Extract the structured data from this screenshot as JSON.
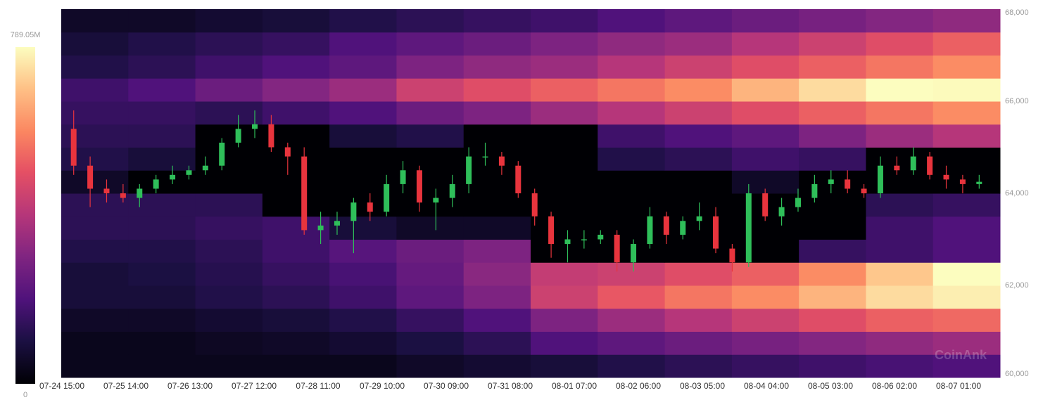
{
  "chart_data": {
    "type": "heatmap-candlestick",
    "watermark": "CoinAnk",
    "colormap": "magma",
    "clim": [
      0,
      789.05
    ],
    "cticks": [
      0,
      {
        "value": 789.05,
        "label": "789.05M"
      }
    ],
    "ylim": [
      60000,
      68000
    ],
    "yticks": [
      {
        "value": 60000,
        "label": "60,000"
      },
      {
        "value": 62000,
        "label": "62,000"
      },
      {
        "value": 64000,
        "label": "64,000"
      },
      {
        "value": 66000,
        "label": "66,000"
      },
      {
        "value": 68000,
        "label": "68,000"
      }
    ],
    "categories": [
      "07-24 15:00",
      "07-25 14:00",
      "07-26 13:00",
      "07-27 12:00",
      "07-28 11:00",
      "07-29 10:00",
      "07-30 09:00",
      "07-31 08:00",
      "08-01 07:00",
      "08-02 06:00",
      "08-03 05:00",
      "08-04 04:00",
      "08-05 03:00",
      "08-06 02:00",
      "08-07 01:00"
    ],
    "up_color": "#2fbf5a",
    "down_color": "#e8343d",
    "heatmap": {
      "price_bins": [
        60000,
        60500,
        61000,
        61500,
        62000,
        62500,
        63000,
        63500,
        64000,
        64500,
        65000,
        65500,
        66000,
        66500,
        67000,
        67500,
        68000
      ],
      "values": [
        [
          5,
          5,
          5,
          5,
          5,
          10,
          15,
          20,
          30,
          40,
          50,
          60,
          70,
          80
        ],
        [
          5,
          5,
          8,
          10,
          15,
          25,
          40,
          80,
          100,
          120,
          140,
          160,
          180,
          200
        ],
        [
          10,
          10,
          15,
          20,
          30,
          50,
          80,
          150,
          200,
          250,
          300,
          350,
          400,
          420
        ],
        [
          20,
          20,
          30,
          40,
          60,
          100,
          150,
          300,
          380,
          450,
          500,
          600,
          700,
          750
        ],
        [
          20,
          25,
          35,
          50,
          70,
          110,
          170,
          280,
          300,
          350,
          400,
          500,
          650,
          789
        ],
        [
          30,
          30,
          40,
          60,
          90,
          120,
          150,
          0,
          0,
          0,
          0,
          50,
          60,
          80
        ],
        [
          40,
          40,
          50,
          60,
          20,
          10,
          10,
          0,
          0,
          0,
          0,
          0,
          60,
          80
        ],
        [
          40,
          40,
          40,
          0,
          0,
          0,
          0,
          0,
          0,
          0,
          0,
          0,
          40,
          50
        ],
        [
          10,
          0,
          0,
          0,
          0,
          0,
          0,
          0,
          0,
          0,
          10,
          0,
          0,
          0
        ],
        [
          30,
          20,
          0,
          0,
          0,
          0,
          0,
          0,
          30,
          40,
          60,
          50,
          0,
          0
        ],
        [
          40,
          40,
          0,
          0,
          20,
          30,
          0,
          0,
          60,
          80,
          100,
          150,
          200,
          250
        ],
        [
          50,
          50,
          40,
          60,
          80,
          120,
          150,
          200,
          250,
          300,
          350,
          400,
          450,
          500
        ],
        [
          60,
          80,
          120,
          160,
          200,
          300,
          350,
          400,
          450,
          500,
          600,
          700,
          789,
          780
        ],
        [
          30,
          40,
          60,
          80,
          100,
          150,
          180,
          200,
          250,
          300,
          350,
          400,
          450,
          500
        ],
        [
          20,
          30,
          40,
          50,
          80,
          100,
          120,
          150,
          180,
          200,
          250,
          300,
          350,
          400
        ],
        [
          10,
          10,
          15,
          20,
          30,
          40,
          50,
          60,
          80,
          100,
          120,
          140,
          160,
          180
        ]
      ]
    },
    "candles": {
      "open": [
        65400,
        64600,
        64100,
        64000,
        63900,
        64100,
        64300,
        64400,
        64500,
        64600,
        65100,
        65400,
        65500,
        65000,
        64800,
        63200,
        63300,
        63400,
        63800,
        63600,
        64200,
        64500,
        63800,
        63900,
        64200,
        64800,
        64800,
        64600,
        64000,
        63500,
        62900,
        63000,
        63000,
        63100,
        62500,
        62900,
        63500,
        63100,
        63400,
        63500,
        62800,
        62500,
        64000,
        63500,
        63700,
        63900,
        64200,
        64300,
        64100,
        64000,
        64600,
        64500,
        64800,
        64400,
        64300,
        64200
      ],
      "close": [
        64600,
        64100,
        64000,
        63900,
        64100,
        64300,
        64400,
        64500,
        64600,
        65100,
        65400,
        65500,
        65000,
        64800,
        63200,
        63300,
        63400,
        63800,
        63600,
        64200,
        64500,
        63800,
        63900,
        64200,
        64800,
        64800,
        64600,
        64000,
        63500,
        62900,
        63000,
        63000,
        63100,
        62500,
        62900,
        63500,
        63100,
        63400,
        63500,
        62800,
        62500,
        64000,
        63500,
        63700,
        63900,
        64200,
        64300,
        64100,
        64000,
        64600,
        64500,
        64800,
        64400,
        64300,
        64200,
        64250
      ],
      "high": [
        65800,
        64800,
        64300,
        64200,
        64200,
        64400,
        64600,
        64600,
        64800,
        65200,
        65700,
        65800,
        65700,
        65100,
        65000,
        63600,
        63600,
        63900,
        64000,
        64400,
        64700,
        64600,
        64100,
        64400,
        65000,
        65100,
        64900,
        64700,
        64100,
        63600,
        63200,
        63200,
        63200,
        63200,
        63000,
        63700,
        63600,
        63500,
        63800,
        63700,
        62900,
        64200,
        64100,
        63900,
        64100,
        64400,
        64500,
        64500,
        64200,
        64800,
        64800,
        65000,
        64900,
        64600,
        64400,
        64400
      ],
      "low": [
        64400,
        63700,
        63800,
        63800,
        63700,
        64000,
        64200,
        64300,
        64400,
        64500,
        65000,
        65200,
        64900,
        64400,
        63100,
        62900,
        63100,
        62700,
        63400,
        63500,
        64000,
        63600,
        63200,
        63700,
        64000,
        64600,
        64400,
        63900,
        63300,
        62600,
        62500,
        62800,
        62900,
        62300,
        62300,
        62800,
        62900,
        63000,
        63200,
        62700,
        62300,
        62400,
        63400,
        63300,
        63600,
        63800,
        64000,
        64000,
        63900,
        63900,
        64400,
        64400,
        64300,
        64100,
        64000,
        64100
      ]
    }
  }
}
